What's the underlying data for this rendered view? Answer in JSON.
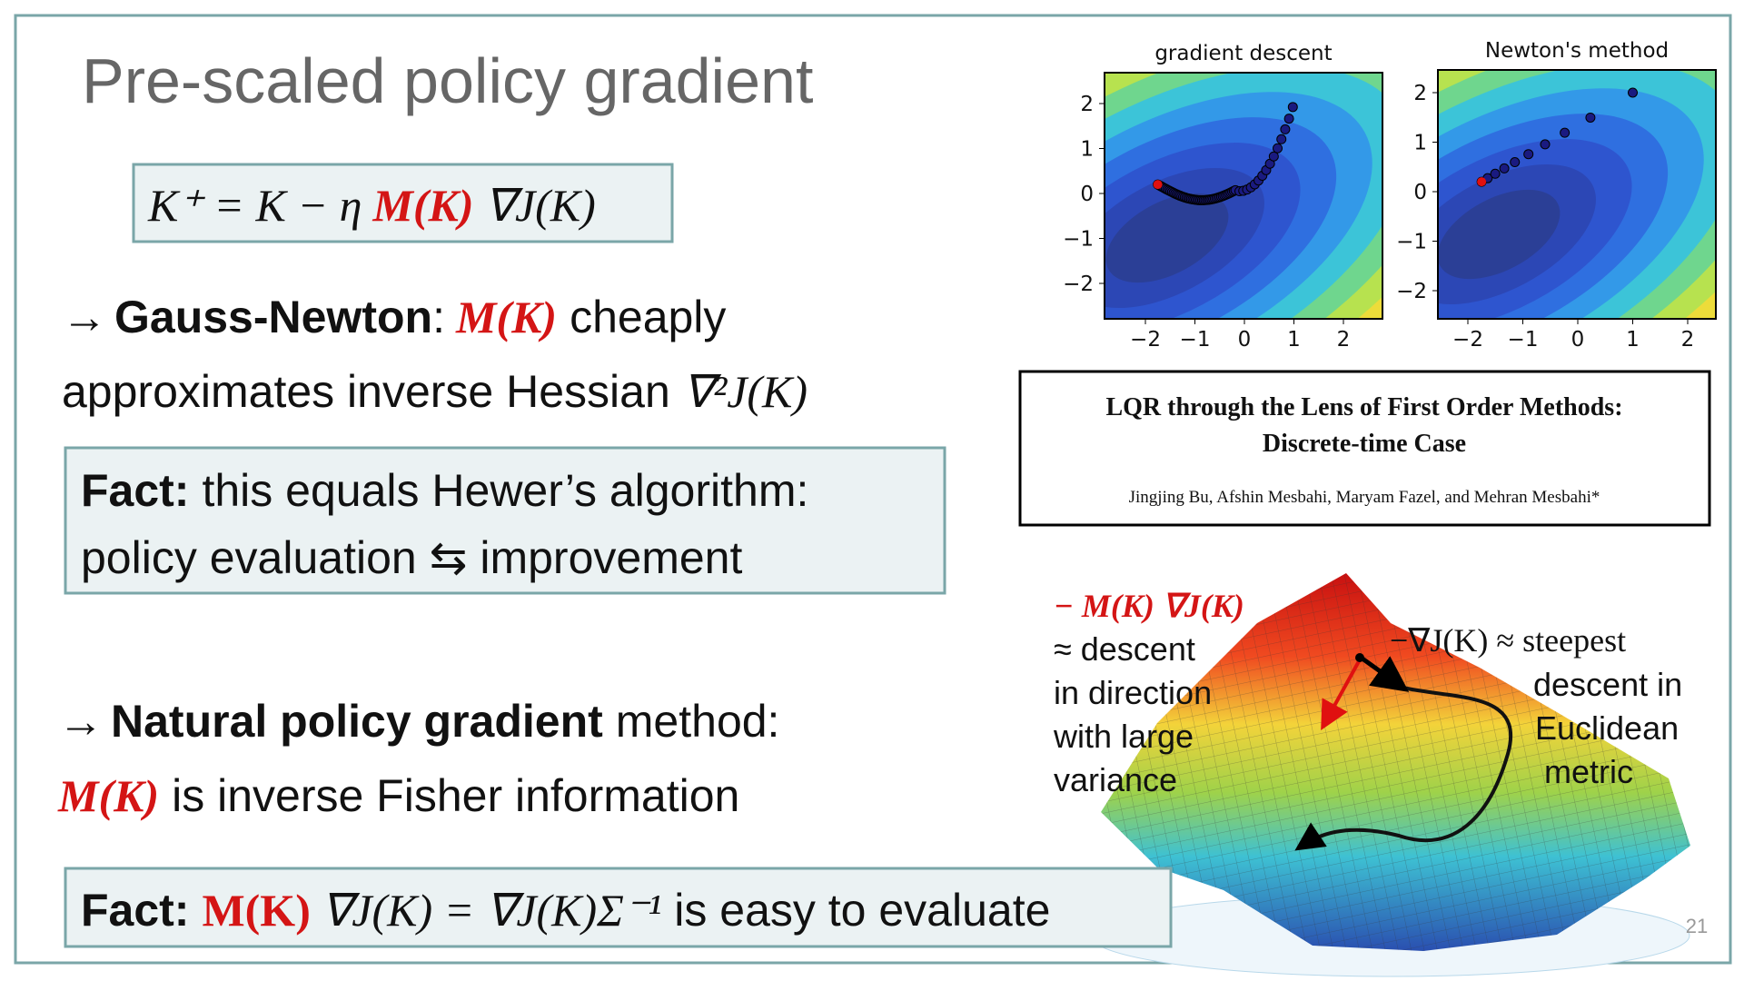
{
  "title": "Pre-scaled policy gradient",
  "update_rule": {
    "lhs": "K⁺ = K − η",
    "m": "M(K)",
    "rhs": "∇J(K)"
  },
  "gauss_newton": {
    "arrow": "→",
    "name": "Gauss-Newton",
    "colon": ":",
    "m": "M(K)",
    "text1": "cheaply",
    "text2": "approximates inverse Hessian",
    "formula": "∇²J(K)"
  },
  "fact1": {
    "label": "Fact:",
    "line1": "this equals Hewer’s algorithm:",
    "line2": "policy evaluation ⇆ improvement"
  },
  "natural": {
    "arrow": "→",
    "name": "Natural policy gradient",
    "text1": "method:",
    "m": "M(K)",
    "text2": "is inverse Fisher information"
  },
  "fact2": {
    "label": "Fact:",
    "m": "M(K)",
    "formula": "∇J(K) = ∇J(K)Σ⁻¹",
    "text": "is easy to evaluate"
  },
  "plots": [
    {
      "title": "gradient descent",
      "xticks": [
        "−2",
        "−1",
        "0",
        "1",
        "2"
      ],
      "yticks": [
        "2",
        "1",
        "0",
        "−1",
        "−2"
      ]
    },
    {
      "title": "Newton's method",
      "xticks": [
        "−2",
        "−1",
        "0",
        "1",
        "2"
      ],
      "yticks": [
        "2",
        "1",
        "0",
        "−1",
        "−2"
      ]
    }
  ],
  "paper": {
    "title_line1": "LQR through the Lens of First Order Methods:",
    "title_line2": "Discrete-time Case",
    "authors": "Jingjing Bu, Afshin Mesbahi, Maryam Fazel, and Mehran Mesbahi*"
  },
  "annotations": {
    "left_formula": "− M(K) ∇J(K)",
    "left": [
      "≈ descent",
      "in direction",
      "with large",
      "variance"
    ],
    "right_formula": "−∇J(K) ≈ steepest",
    "right": [
      "descent in",
      "Euclidean",
      "metric"
    ]
  },
  "page_number": "21"
}
